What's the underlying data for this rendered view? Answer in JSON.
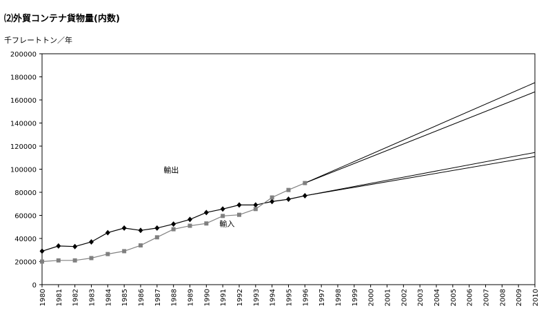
{
  "chart_data": {
    "type": "line",
    "title": "⑵外貿コンテナ貨物量(内数)",
    "ylabel": "千フレートトン／年",
    "xlabel": "",
    "ylim": [
      0,
      200000
    ],
    "yticks": [
      0,
      20000,
      40000,
      60000,
      80000,
      100000,
      120000,
      140000,
      160000,
      180000,
      200000
    ],
    "xlim": [
      1980,
      2010
    ],
    "xticks": [
      "1980",
      "1981",
      "1982",
      "1983",
      "1984",
      "1985",
      "1986",
      "1987",
      "1988",
      "1989",
      "1990",
      "1991",
      "1992",
      "1993",
      "1994",
      "1995",
      "1996",
      "1997",
      "1998",
      "1999",
      "2000",
      "2001",
      "2002",
      "2003",
      "2004",
      "2005",
      "2006",
      "2007",
      "2008",
      "2009",
      "2010"
    ],
    "grid": false,
    "legend": "none",
    "series": [
      {
        "name": "輸出",
        "color": "#000000",
        "marker": "diamond",
        "x": [
          1980,
          1981,
          1982,
          1983,
          1984,
          1985,
          1986,
          1987,
          1988,
          1989,
          1990,
          1991,
          1992,
          1993,
          1994,
          1995,
          1996
        ],
        "y": [
          29000,
          33500,
          33000,
          37000,
          45000,
          49000,
          47000,
          49000,
          52500,
          56500,
          62500,
          65500,
          69000,
          69000,
          72000,
          74000,
          77000
        ]
      },
      {
        "name": "輸入",
        "color": "#808080",
        "marker": "square",
        "x": [
          1980,
          1981,
          1982,
          1983,
          1984,
          1985,
          1986,
          1987,
          1988,
          1989,
          1990,
          1991,
          1992,
          1993,
          1994,
          1995,
          1996
        ],
        "y": [
          20000,
          21000,
          21000,
          23000,
          26500,
          29000,
          34000,
          41000,
          48000,
          51000,
          53000,
          59500,
          60500,
          65500,
          75500,
          82000,
          88000
        ]
      }
    ],
    "projections": [
      {
        "x": [
          1996,
          2010
        ],
        "y": [
          88000,
          175000
        ]
      },
      {
        "x": [
          1996,
          2010
        ],
        "y": [
          88000,
          167000
        ]
      },
      {
        "x": [
          1996,
          2010
        ],
        "y": [
          77000,
          114500
        ]
      },
      {
        "x": [
          1996,
          2010
        ],
        "y": [
          77000,
          111000
        ]
      }
    ],
    "annotations": [
      {
        "text": "輸出",
        "x": 1987.4,
        "y": 97000
      },
      {
        "text": "輸入",
        "x": 1990.8,
        "y": 50500
      }
    ]
  }
}
